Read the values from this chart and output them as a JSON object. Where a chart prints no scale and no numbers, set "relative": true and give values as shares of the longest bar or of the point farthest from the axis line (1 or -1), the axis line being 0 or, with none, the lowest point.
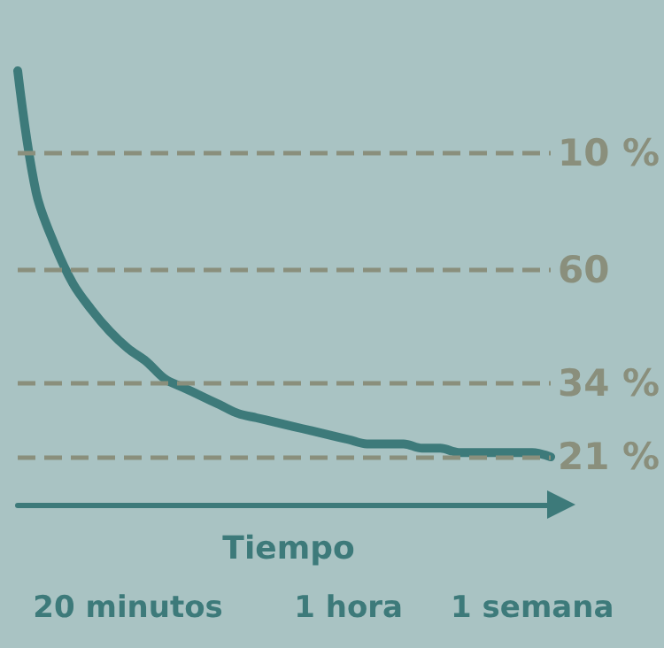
{
  "chart_data": {
    "type": "line",
    "xlabel": "Tiempo",
    "relative": true,
    "color": "#3d7a7a",
    "categories": [
      null,
      null,
      null,
      null,
      null,
      null,
      "20 minutos",
      null,
      null,
      null,
      null,
      null,
      null,
      null,
      null,
      null,
      null,
      null,
      "1 hora",
      null,
      null,
      null,
      null,
      null,
      null,
      null,
      null,
      null,
      "1 semana",
      null
    ],
    "values": [
      1.0,
      0.72,
      0.6,
      0.51,
      0.45,
      0.4,
      0.36,
      0.33,
      0.29,
      0.27,
      0.25,
      0.23,
      0.21,
      0.2,
      0.19,
      0.18,
      0.17,
      0.16,
      0.15,
      0.14,
      0.14,
      0.14,
      0.13,
      0.13,
      0.12,
      0.12,
      0.12,
      0.12,
      0.12,
      0.11
    ],
    "annotations": [
      "10 %",
      "60",
      "34 %",
      "21 %"
    ],
    "ref_lines": [
      {
        "axis": "y",
        "value": 0.81,
        "color": "#8a8f7c",
        "line_style": "dashed"
      },
      {
        "axis": "y",
        "value": 0.54,
        "color": "#8a8f7c",
        "line_style": "dashed"
      },
      {
        "axis": "y",
        "value": 0.28,
        "color": "#8a8f7c",
        "line_style": "dashed"
      },
      {
        "axis": "y",
        "value": 0.11,
        "color": "#8a8f7c",
        "line_style": "dashed"
      }
    ]
  }
}
